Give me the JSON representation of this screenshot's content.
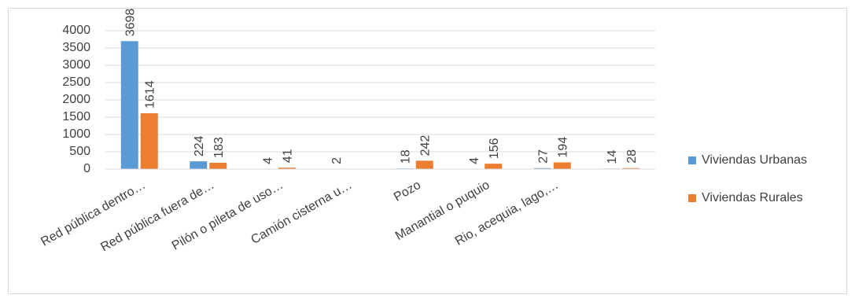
{
  "chart_data": {
    "type": "bar",
    "categories": [
      "Red pública dentro…",
      "Red pública fuera de…",
      "Pilón o pileta de uso…",
      "Camión cisterna u…",
      "Pozo",
      "Manantial o puquio",
      "Rio, acequia, lago,…",
      null
    ],
    "series": [
      {
        "name": "Viviendas Urbanas",
        "color": "#5b9bd5",
        "values": [
          3698,
          224,
          4,
          2,
          18,
          4,
          27,
          14
        ]
      },
      {
        "name": "Viviendas Rurales",
        "color": "#ed7d31",
        "values": [
          1614,
          183,
          41,
          null,
          242,
          156,
          194,
          28
        ]
      }
    ],
    "ylim": [
      0,
      4000
    ],
    "yticks": [
      0,
      500,
      1000,
      1500,
      2000,
      2500,
      3000,
      3500,
      4000
    ],
    "grid": true,
    "legend": "right"
  }
}
